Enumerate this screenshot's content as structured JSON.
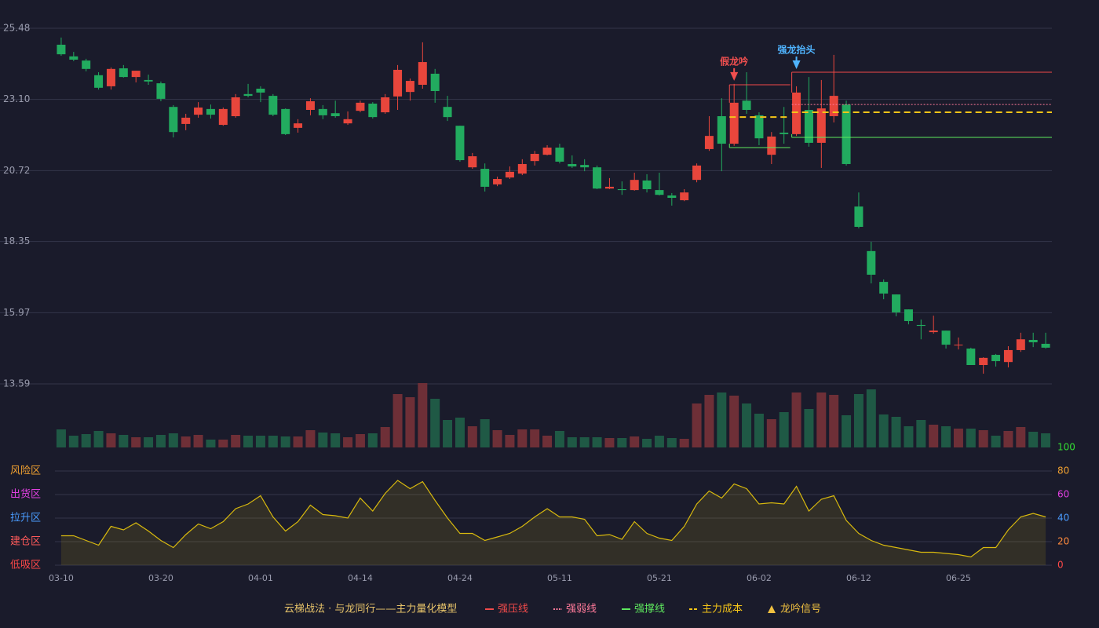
{
  "chart_data": {
    "type": "candlestick",
    "categories": [
      "03-10",
      null,
      null,
      null,
      null,
      null,
      null,
      null,
      "03-20",
      null,
      null,
      null,
      null,
      null,
      null,
      null,
      "04-01",
      null,
      null,
      null,
      null,
      null,
      null,
      null,
      "04-14",
      null,
      null,
      null,
      null,
      null,
      null,
      null,
      "04-24",
      null,
      null,
      null,
      null,
      null,
      null,
      null,
      "05-11",
      null,
      null,
      null,
      null,
      null,
      null,
      null,
      "05-21",
      null,
      null,
      null,
      null,
      null,
      null,
      null,
      "06-02",
      null,
      null,
      null,
      null,
      null,
      null,
      null,
      "06-12",
      null,
      null,
      null,
      null,
      null,
      null,
      null,
      "06-25",
      null,
      null,
      null,
      null,
      null,
      null,
      null
    ],
    "open": [
      24.93,
      24.54,
      24.4,
      23.91,
      23.54,
      24.14,
      23.85,
      23.75,
      23.64,
      22.85,
      22.28,
      22.59,
      22.78,
      22.25,
      22.54,
      23.28,
      23.46,
      23.22,
      22.78,
      22.15,
      22.75,
      22.78,
      22.64,
      22.3,
      22.72,
      22.96,
      22.67,
      23.2,
      23.35,
      23.59,
      23.96,
      22.85,
      22.22,
      20.83,
      20.78,
      20.26,
      20.49,
      20.62,
      21.04,
      21.25,
      21.49,
      20.94,
      20.91,
      20.83,
      20.12,
      20.1,
      20.07,
      20.39,
      20.07,
      19.89,
      19.73,
      20.41,
      21.44,
      22.54,
      21.62,
      23.06,
      22.57,
      21.25,
      21.99,
      21.94,
      22.75,
      21.65,
      22.54,
      22.93,
      19.52,
      18.03,
      17.0,
      16.58,
      16.08,
      15.56,
      15.32,
      15.37,
      14.88,
      14.77,
      14.22,
      14.56,
      14.32,
      14.72,
      15.06,
      14.93
    ],
    "high": [
      25.17,
      24.69,
      24.46,
      24.01,
      24.17,
      24.25,
      24.06,
      23.93,
      23.7,
      22.91,
      22.62,
      23.01,
      22.93,
      22.83,
      23.28,
      23.62,
      23.54,
      23.28,
      22.8,
      22.44,
      23.14,
      22.91,
      23.06,
      22.7,
      23.06,
      23.01,
      23.28,
      24.25,
      23.8,
      25.01,
      24.12,
      23.22,
      22.22,
      21.31,
      20.96,
      20.52,
      20.86,
      21.1,
      21.38,
      21.57,
      21.62,
      21.23,
      21.1,
      20.89,
      20.47,
      20.36,
      20.65,
      20.6,
      20.65,
      19.97,
      20.1,
      20.96,
      22.54,
      23.14,
      23.62,
      24.01,
      22.67,
      22.01,
      22.85,
      23.54,
      23.85,
      23.75,
      24.59,
      23.06,
      19.99,
      18.34,
      17.08,
      16.58,
      16.08,
      15.74,
      15.87,
      15.37,
      15.14,
      14.8,
      14.48,
      14.59,
      14.85,
      15.3,
      15.3,
      15.3
    ],
    "low": [
      24.56,
      24.38,
      24.04,
      23.43,
      23.43,
      23.83,
      23.67,
      23.59,
      23.04,
      21.83,
      22.07,
      22.49,
      22.46,
      22.22,
      22.49,
      23.17,
      23.01,
      22.54,
      21.91,
      21.99,
      22.57,
      22.44,
      22.49,
      22.25,
      22.67,
      22.46,
      22.62,
      22.75,
      23.06,
      23.46,
      22.99,
      22.38,
      21.02,
      20.78,
      20.02,
      20.2,
      20.44,
      20.57,
      20.89,
      21.23,
      20.96,
      20.81,
      20.7,
      20.1,
      20.1,
      19.91,
      20.05,
      19.99,
      19.89,
      19.55,
      19.7,
      20.33,
      21.38,
      20.7,
      21.55,
      22.62,
      21.57,
      20.94,
      21.62,
      21.88,
      21.52,
      20.81,
      22.33,
      20.89,
      18.79,
      16.95,
      16.42,
      15.85,
      15.58,
      15.08,
      15.27,
      14.77,
      14.74,
      14.22,
      13.93,
      14.17,
      14.14,
      14.66,
      14.82,
      14.77
    ],
    "close": [
      24.61,
      24.43,
      24.12,
      23.49,
      24.12,
      23.85,
      24.06,
      23.7,
      23.12,
      22.01,
      22.49,
      22.83,
      22.59,
      22.78,
      23.17,
      23.22,
      23.33,
      22.59,
      21.94,
      22.3,
      23.04,
      22.57,
      22.54,
      22.44,
      22.99,
      22.51,
      23.17,
      24.09,
      23.72,
      24.35,
      23.38,
      22.51,
      21.07,
      21.2,
      20.18,
      20.44,
      20.68,
      20.94,
      21.28,
      21.49,
      21.02,
      20.86,
      20.83,
      20.12,
      20.18,
      20.07,
      20.41,
      20.1,
      19.91,
      19.81,
      19.99,
      20.89,
      21.88,
      21.62,
      22.99,
      22.75,
      21.8,
      21.86,
      21.94,
      23.33,
      21.65,
      22.8,
      23.22,
      20.94,
      18.84,
      17.24,
      16.61,
      15.98,
      15.69,
      15.53,
      15.37,
      14.9,
      14.9,
      14.22,
      14.46,
      14.35,
      14.72,
      15.08,
      14.98,
      14.8
    ],
    "up_color": "#e8463c",
    "down_color": "#22ab5f",
    "ylim": [
      13.59,
      25.48
    ],
    "yticks": [
      25.48,
      {
        "value": 23.1,
        "label": "23.10"
      },
      20.72,
      18.35,
      15.97,
      13.59
    ],
    "grid": true,
    "volume": {
      "values": [
        23,
        15,
        17,
        21,
        18,
        16,
        13,
        13,
        16,
        18,
        14,
        16,
        10,
        10,
        16,
        15,
        15,
        15,
        14,
        14,
        22,
        19,
        18,
        13,
        17,
        18,
        26,
        68,
        64,
        82,
        62,
        35,
        38,
        27,
        36,
        22,
        16,
        23,
        23,
        15,
        21,
        13,
        13,
        13,
        12,
        12,
        14,
        11,
        15,
        12,
        11,
        56,
        67,
        70,
        66,
        56,
        43,
        36,
        45,
        70,
        49,
        70,
        67,
        41,
        68,
        74,
        42,
        39,
        27,
        35,
        29,
        27,
        24,
        24,
        22,
        15,
        21,
        26,
        20,
        18
      ],
      "up_color": "#6e2f37",
      "down_color": "#1f5945"
    },
    "indicator": {
      "type": "area",
      "values": [
        25,
        25,
        21,
        17,
        33,
        30,
        36,
        29,
        21,
        15,
        26,
        35,
        31,
        37,
        48,
        52,
        59,
        41,
        29,
        37,
        51,
        43,
        42,
        40,
        57,
        46,
        61,
        72,
        65,
        71,
        55,
        40,
        27,
        27,
        21,
        24,
        27,
        33,
        41,
        48,
        41,
        41,
        39,
        25,
        26,
        22,
        37,
        27,
        23,
        21,
        33,
        52,
        63,
        57,
        69,
        65,
        52,
        53,
        52,
        67,
        46,
        56,
        59,
        38,
        27,
        21,
        17,
        15,
        13,
        11,
        11,
        10,
        9,
        7,
        15,
        15,
        30,
        41,
        44,
        41
      ],
      "color": "#d8b90e",
      "ylim": [
        0,
        100
      ],
      "yticks": [
        0,
        20,
        40,
        60,
        80,
        100
      ],
      "ytick_colors": [
        "#ff4848",
        "#ff8a3d",
        "#4a9cff",
        "#e040e0",
        "#f0a030",
        "#33dd33"
      ],
      "zones": [
        {
          "label": "低吸区",
          "value": 0,
          "color": "#ff4848"
        },
        {
          "label": "建仓区",
          "value": 20,
          "color": "#ff5a5a"
        },
        {
          "label": "拉升区",
          "value": 40,
          "color": "#4a9cff"
        },
        {
          "label": "出货区",
          "value": 60,
          "color": "#e040e0"
        },
        {
          "label": "风险区",
          "value": 80,
          "color": "#f0a030"
        }
      ]
    },
    "signals": [
      {
        "index": 54,
        "label": "假龙吟",
        "color": "#f04f4f"
      },
      {
        "index": 59,
        "label": "强龙抬头",
        "color": "#4fb4ff"
      }
    ],
    "legend": {
      "title": "云梯战法 · 与龙同行——主力量化模型",
      "title_color": "#e8c46a",
      "items": [
        {
          "label": "强压线",
          "color": "#f04a4a",
          "style": "solid",
          "levels": [
            {
              "value": 23.59,
              "from": 54,
              "to": 58
            },
            {
              "value": 24.01,
              "from": 59,
              "to": 79
            }
          ]
        },
        {
          "label": "强弱线",
          "color": "#ff7a9a",
          "style": "dotted",
          "levels": [
            {
              "value": 22.93,
              "from": 59,
              "to": 79
            }
          ]
        },
        {
          "label": "强撑线",
          "color": "#5ee85e",
          "style": "solid",
          "levels": [
            {
              "value": 21.49,
              "from": 54,
              "to": 58
            },
            {
              "value": 21.83,
              "from": 59,
              "to": 79
            }
          ]
        },
        {
          "label": "主力成本",
          "color": "#f5c518",
          "style": "dashed",
          "levels": [
            {
              "value": 22.51,
              "from": 54,
              "to": 58
            },
            {
              "value": 22.67,
              "from": 59,
              "to": 79
            }
          ]
        },
        {
          "label": "龙吟信号",
          "color": "#f0c040",
          "style": "triangle"
        }
      ]
    }
  }
}
